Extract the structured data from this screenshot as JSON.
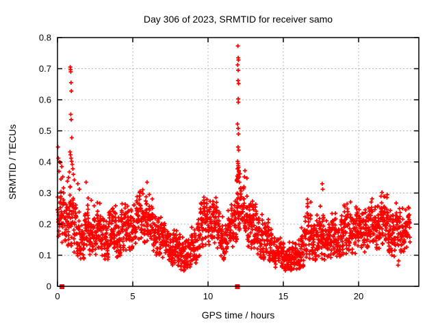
{
  "page": {
    "background": "#ffffff"
  },
  "chart_data": {
    "type": "scatter",
    "title": "Day 306 of 2023, SRMTID for receiver samo",
    "xlabel": "GPS time / hours",
    "ylabel": "SRMTID / TECUs",
    "xlim": [
      0,
      24
    ],
    "ylim": [
      0,
      0.8
    ],
    "xticks": [
      0,
      5,
      10,
      15,
      20
    ],
    "yticks": [
      0,
      0.1,
      0.2,
      0.3,
      0.4,
      0.5,
      0.6,
      0.7,
      0.8
    ],
    "grid": true,
    "grid_style": "dashed",
    "grid_color": "#b3b3b3",
    "axis_color": "#000000",
    "legend_position": "none",
    "marker": "plus",
    "marker_color": "#ff0000",
    "n_points_estimate": 2900,
    "estimated_from_pixels": true,
    "series": [
      {
        "name": "srmtid-band",
        "description": "dense 24h scatter band; profile control points are [hour, mean, min, max] in TECUs read from the plot",
        "sample_interval_hours": 0.01,
        "noise_seed": 77,
        "x_end": 23.42,
        "profile": [
          [
            0.0,
            0.22,
            0.14,
            0.3
          ],
          [
            0.3,
            0.23,
            0.14,
            0.32
          ],
          [
            0.6,
            0.21,
            0.13,
            0.31
          ],
          [
            0.9,
            0.22,
            0.13,
            0.33
          ],
          [
            1.2,
            0.18,
            0.1,
            0.28
          ],
          [
            1.6,
            0.15,
            0.08,
            0.25
          ],
          [
            2.0,
            0.17,
            0.1,
            0.29
          ],
          [
            2.5,
            0.18,
            0.1,
            0.28
          ],
          [
            3.0,
            0.16,
            0.09,
            0.26
          ],
          [
            3.5,
            0.17,
            0.08,
            0.28
          ],
          [
            4.0,
            0.16,
            0.09,
            0.26
          ],
          [
            4.5,
            0.19,
            0.11,
            0.29
          ],
          [
            5.0,
            0.2,
            0.12,
            0.3
          ],
          [
            5.5,
            0.22,
            0.13,
            0.32
          ],
          [
            6.0,
            0.22,
            0.14,
            0.32
          ],
          [
            6.5,
            0.17,
            0.1,
            0.26
          ],
          [
            7.0,
            0.15,
            0.09,
            0.23
          ],
          [
            7.5,
            0.13,
            0.07,
            0.2
          ],
          [
            8.0,
            0.11,
            0.05,
            0.18
          ],
          [
            8.5,
            0.1,
            0.05,
            0.17
          ],
          [
            9.0,
            0.12,
            0.06,
            0.2
          ],
          [
            9.5,
            0.18,
            0.1,
            0.28
          ],
          [
            10.0,
            0.21,
            0.13,
            0.3
          ],
          [
            10.4,
            0.22,
            0.14,
            0.31
          ],
          [
            10.8,
            0.16,
            0.09,
            0.24
          ],
          [
            11.2,
            0.14,
            0.08,
            0.22
          ],
          [
            11.6,
            0.19,
            0.11,
            0.29
          ],
          [
            12.0,
            0.25,
            0.15,
            0.33
          ],
          [
            12.4,
            0.23,
            0.14,
            0.33
          ],
          [
            12.8,
            0.2,
            0.12,
            0.3
          ],
          [
            13.3,
            0.17,
            0.1,
            0.26
          ],
          [
            13.8,
            0.15,
            0.08,
            0.24
          ],
          [
            14.3,
            0.12,
            0.06,
            0.19
          ],
          [
            14.8,
            0.1,
            0.05,
            0.16
          ],
          [
            15.3,
            0.09,
            0.05,
            0.15
          ],
          [
            15.8,
            0.09,
            0.05,
            0.16
          ],
          [
            16.3,
            0.13,
            0.06,
            0.24
          ],
          [
            16.6,
            0.17,
            0.09,
            0.3
          ],
          [
            17.0,
            0.15,
            0.08,
            0.25
          ],
          [
            17.5,
            0.16,
            0.09,
            0.27
          ],
          [
            18.0,
            0.15,
            0.08,
            0.24
          ],
          [
            18.5,
            0.15,
            0.09,
            0.25
          ],
          [
            19.0,
            0.17,
            0.1,
            0.28
          ],
          [
            19.5,
            0.18,
            0.1,
            0.28
          ],
          [
            20.0,
            0.18,
            0.11,
            0.27
          ],
          [
            20.5,
            0.19,
            0.11,
            0.28
          ],
          [
            21.0,
            0.19,
            0.12,
            0.29
          ],
          [
            21.5,
            0.2,
            0.12,
            0.3
          ],
          [
            22.0,
            0.19,
            0.11,
            0.29
          ],
          [
            22.5,
            0.17,
            0.08,
            0.27
          ],
          [
            23.0,
            0.18,
            0.11,
            0.26
          ],
          [
            23.4,
            0.2,
            0.14,
            0.27
          ]
        ]
      },
      {
        "name": "outlier-points",
        "description": "individually visible markers outside the dense band (two TID spike columns near 1h and 12h)",
        "points": [
          [
            0.03,
            0.448
          ],
          [
            0.06,
            0.412
          ],
          [
            0.1,
            0.37
          ],
          [
            0.12,
            0.4
          ],
          [
            0.2,
            0.398
          ],
          [
            0.23,
            0.345
          ],
          [
            0.28,
            0.385
          ],
          [
            0.35,
            0.352
          ],
          [
            0.85,
            0.705
          ],
          [
            0.87,
            0.697
          ],
          [
            0.88,
            0.69
          ],
          [
            0.9,
            0.655
          ],
          [
            0.92,
            0.628
          ],
          [
            0.88,
            0.553
          ],
          [
            0.91,
            0.536
          ],
          [
            0.95,
            0.478
          ],
          [
            0.83,
            0.432
          ],
          [
            0.87,
            0.423
          ],
          [
            0.9,
            0.412
          ],
          [
            0.94,
            0.402
          ],
          [
            0.98,
            0.392
          ],
          [
            1.02,
            0.378
          ],
          [
            0.79,
            0.368
          ],
          [
            1.06,
            0.36
          ],
          [
            0.73,
            0.35
          ],
          [
            1.12,
            0.342
          ],
          [
            0.66,
            0.338
          ],
          [
            1.35,
            0.33
          ],
          [
            1.45,
            0.312
          ],
          [
            1.9,
            0.335
          ],
          [
            5.95,
            0.335
          ],
          [
            11.98,
            0.773
          ],
          [
            12.0,
            0.735
          ],
          [
            12.02,
            0.728
          ],
          [
            11.97,
            0.712
          ],
          [
            12.0,
            0.695
          ],
          [
            11.99,
            0.662
          ],
          [
            12.03,
            0.652
          ],
          [
            12.0,
            0.603
          ],
          [
            12.01,
            0.592
          ],
          [
            11.96,
            0.522
          ],
          [
            12.0,
            0.508
          ],
          [
            12.02,
            0.49
          ],
          [
            11.99,
            0.448
          ],
          [
            12.03,
            0.438
          ],
          [
            11.97,
            0.402
          ],
          [
            12.0,
            0.388
          ],
          [
            12.05,
            0.372
          ],
          [
            11.94,
            0.355
          ],
          [
            12.0,
            0.348
          ],
          [
            12.08,
            0.335
          ],
          [
            11.9,
            0.342
          ],
          [
            12.12,
            0.362
          ],
          [
            11.92,
            0.338
          ],
          [
            11.95,
            0.345
          ],
          [
            11.98,
            0.352
          ],
          [
            12.01,
            0.36
          ],
          [
            12.04,
            0.368
          ],
          [
            12.07,
            0.352
          ],
          [
            11.96,
            0.378
          ],
          [
            12.02,
            0.382
          ],
          [
            11.99,
            0.395
          ],
          [
            12.45,
            0.372
          ],
          [
            12.58,
            0.348
          ],
          [
            12.42,
            0.352
          ],
          [
            17.58,
            0.33
          ],
          [
            17.62,
            0.312
          ],
          [
            21.55,
            0.302
          ],
          [
            21.9,
            0.295
          ],
          [
            22.62,
            0.068
          ],
          [
            22.66,
            0.082
          ]
        ]
      },
      {
        "name": "axis-marker-squares",
        "description": "filled square markers sitting on the x-axis (y=0)",
        "marker": "square",
        "points": [
          [
            0.3,
            0.0
          ],
          [
            11.95,
            0.0
          ]
        ]
      }
    ]
  }
}
